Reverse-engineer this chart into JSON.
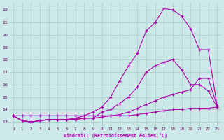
{
  "x": [
    0,
    1,
    2,
    3,
    4,
    5,
    6,
    7,
    8,
    9,
    10,
    11,
    12,
    13,
    14,
    15,
    16,
    17,
    18,
    19,
    20,
    21,
    22,
    23
  ],
  "line1": [
    13.5,
    13.5,
    13.5,
    13.5,
    13.5,
    13.5,
    13.5,
    13.5,
    13.5,
    13.5,
    13.5,
    13.5,
    13.5,
    13.5,
    13.6,
    13.7,
    13.8,
    13.9,
    14.0,
    14.0,
    14.1,
    14.1,
    14.1,
    14.2
  ],
  "line2": [
    13.5,
    13.1,
    13.0,
    13.1,
    13.2,
    13.2,
    13.2,
    13.2,
    13.3,
    13.3,
    13.4,
    13.5,
    13.6,
    13.8,
    14.1,
    14.4,
    14.7,
    15.0,
    15.2,
    15.4,
    15.6,
    16.5,
    16.5,
    14.3
  ],
  "line3": [
    13.5,
    13.1,
    13.0,
    13.1,
    13.2,
    13.2,
    13.2,
    13.2,
    13.3,
    13.3,
    13.8,
    14.0,
    14.5,
    15.0,
    15.8,
    17.0,
    17.5,
    17.8,
    18.0,
    17.2,
    16.0,
    16.0,
    15.5,
    14.2
  ],
  "line4": [
    13.5,
    13.1,
    13.0,
    13.1,
    13.2,
    13.2,
    13.2,
    13.3,
    13.5,
    13.8,
    14.2,
    15.0,
    16.3,
    17.5,
    18.5,
    20.3,
    21.0,
    22.1,
    22.0,
    21.5,
    20.5,
    18.8,
    18.8,
    14.3
  ],
  "bg_color": "#cce8e8",
  "line_color": "#aa00aa",
  "grid_color": "#aacccc",
  "xlabel": "Windchill (Refroidissement éolien,°C)",
  "yticks": [
    13,
    14,
    15,
    16,
    17,
    18,
    19,
    20,
    21,
    22
  ],
  "xticks": [
    0,
    1,
    2,
    3,
    4,
    5,
    6,
    7,
    8,
    9,
    10,
    11,
    12,
    13,
    14,
    15,
    16,
    17,
    18,
    19,
    20,
    21,
    22,
    23
  ],
  "xlim": [
    -0.5,
    23.5
  ],
  "ylim": [
    12.6,
    22.6
  ],
  "marker": "+",
  "markersize": 3,
  "linewidth": 0.8
}
